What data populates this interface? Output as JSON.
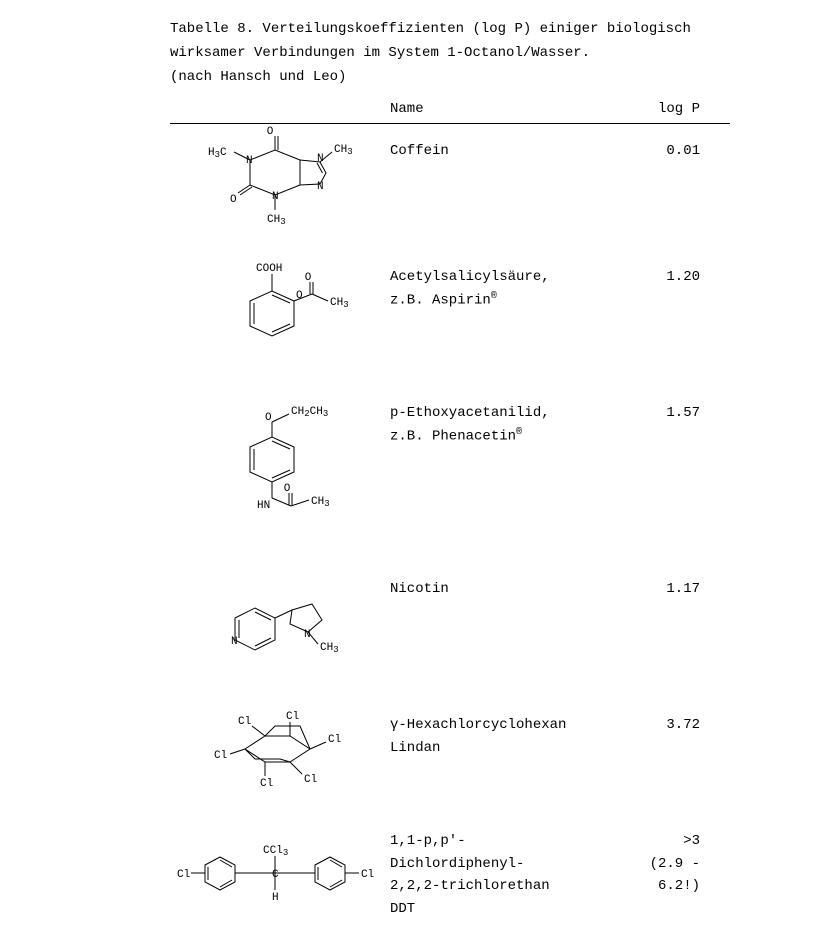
{
  "title": {
    "line1": "Tabelle 8. Verteilungskoeffizienten (log P) einiger biologisch",
    "line2": "wirksamer Verbindungen im System 1-Octanol/Wasser.",
    "line3": "(nach Hansch und Leo)"
  },
  "headers": {
    "name": "Name",
    "logp": "log P"
  },
  "rows": [
    {
      "name_lines": [
        "Coffein"
      ],
      "logp_lines": [
        "0.01"
      ],
      "struct": "caffeine"
    },
    {
      "name_lines": [
        "Acetylsalicylsäure,",
        "z.B. Aspirin"
      ],
      "reg_after": 1,
      "logp_lines": [
        "1.20"
      ],
      "struct": "aspirin"
    },
    {
      "name_lines": [
        "p-Ethoxyacetanilid,",
        "z.B. Phenacetin"
      ],
      "reg_after": 1,
      "logp_lines": [
        "1.57"
      ],
      "struct": "phenacetin"
    },
    {
      "name_lines": [
        "Nicotin"
      ],
      "logp_lines": [
        "1.17"
      ],
      "struct": "nicotine"
    },
    {
      "name_lines": [
        "γ-Hexachlorcyclohexan",
        "Lindan"
      ],
      "logp_lines": [
        "3.72"
      ],
      "struct": "lindane"
    },
    {
      "name_lines": [
        "1,1-p,p'-Dichlordiphenyl-",
        "2,2,2-trichlorethan",
        "DDT"
      ],
      "logp_lines": [
        ">3",
        "(2.9 - 6.2!)"
      ],
      "struct": "ddt"
    }
  ],
  "style": {
    "font_family": "Courier New",
    "font_size_pt": 11,
    "text_color": "#000000",
    "rule_color": "#000000",
    "bond_stroke": "#000000",
    "bond_width": 1,
    "double_bond_gap": 2.5
  }
}
